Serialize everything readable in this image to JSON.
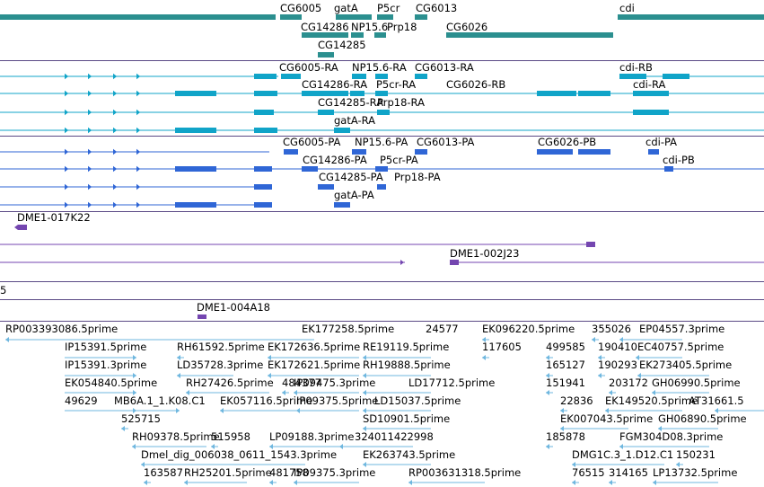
{
  "colors": {
    "gene": "#2b8f8f",
    "transcript_ra": "#10a4c8",
    "transcript_pa": "#2f66d6",
    "clone": "#7446b0",
    "est": "#6fb7df",
    "separator": "#5b4a86"
  },
  "gene_track": {
    "labels": [
      "CG6005",
      "gatA",
      "P5cr",
      "CG6013",
      "cdi",
      "CG14286",
      "NP15.6",
      "Prp18",
      "CG6026",
      "CG14285"
    ]
  },
  "transcript_ra_track": {
    "labels": [
      "CG6005-RA",
      "NP15.6-RA",
      "CG6013-RA",
      "cdi-RB",
      "CG14286-RA",
      "P5cr-RA",
      "CG6026-RB",
      "cdi-RA",
      "CG14285-RA",
      "Prp18-RA",
      "gatA-RA"
    ]
  },
  "transcript_pa_track": {
    "labels": [
      "CG6005-PA",
      "NP15.6-PA",
      "CG6013-PA",
      "CG6026-PB",
      "cdi-PA",
      "CG14286-PA",
      "P5cr-PA",
      "cdi-PB",
      "CG14285-PA",
      "Prp18-PA",
      "gatA-PA"
    ]
  },
  "clone_track": {
    "labels": [
      "DME1-017K22",
      "DME1-002J23"
    ]
  },
  "clone_track_2": {
    "labels": [
      "5"
    ]
  },
  "clone_track_3": {
    "labels": [
      "DME1-004A18"
    ]
  },
  "est_track": {
    "labels": [
      "RP003393086.5prime",
      "EK177258.5prime",
      "24577",
      "EK096220.5prime",
      "355026",
      "EP04557.3prime",
      "IP15391.5prime",
      "RH61592.5prime",
      "EK172636.5prime",
      "RE19119.5prime",
      "117605",
      "499585",
      "190410",
      "EC40757.5prime",
      "IP15391.3prime",
      "LD35728.3prime",
      "EK172621.5prime",
      "RH19888.5prime",
      "165127",
      "190293",
      "EK273405.5prime",
      "EK054840.5prime",
      "RH27426.5prime",
      "484377",
      "IP09475.3prime",
      "LD17712.5prime",
      "151941",
      "203172",
      "GH06990.5prime",
      "49629",
      "MB6A.1_1.K08.C1",
      "EK057116.5prime",
      "IP09375.5prime",
      "LD15037.5prime",
      "22836",
      "EK149520.5prime",
      "AT31661.5",
      "525715",
      "SD10901.5prime",
      "EK007043.5prime",
      "GH06890.5prime",
      "RH09378.5prime",
      "515958",
      "LP09188.3prime",
      "324011422998",
      "185878",
      "FGM304D08.3prime",
      "Dmel_dig_006038_0611_1543.3prime",
      "EK263743.5prime",
      "DMG1C.3_1.D12.C1",
      "150231",
      "163587",
      "RH25201.5prime",
      "481758",
      "IP09375.3prime",
      "RP003631318.5prime",
      "76515",
      "314165",
      "LP13732.5prime"
    ]
  }
}
